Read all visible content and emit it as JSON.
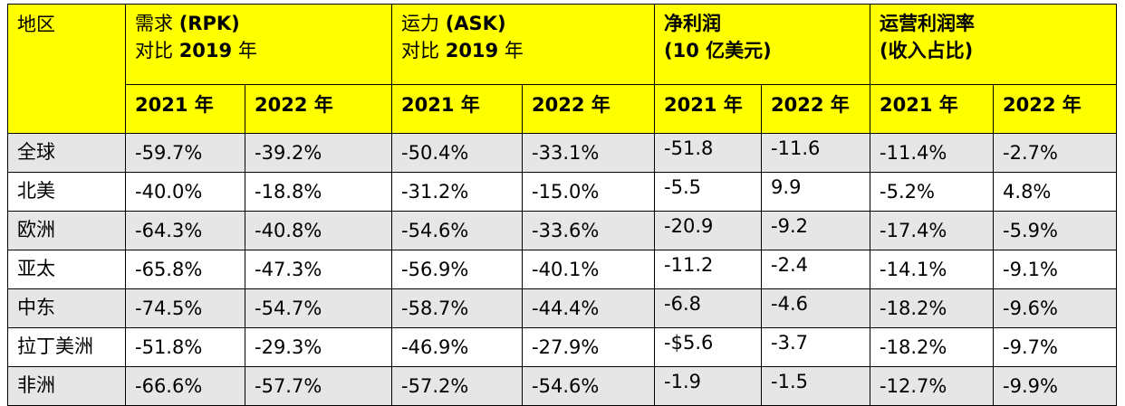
{
  "chart_data": {
    "type": "table",
    "region_header": "地区",
    "groups": [
      {
        "line1_label": "需求 ",
        "line1_bold": "(RPK)",
        "line2_label": "对比 ",
        "line2_bold": "2019",
        "line2_tail": " 年"
      },
      {
        "line1_label": "运力 ",
        "line1_bold": "(ASK)",
        "line2_label": "对比 ",
        "line2_bold": "2019",
        "line2_tail": " 年"
      },
      {
        "line1_label": "净利润",
        "line1_bold": "",
        "line2_label": "",
        "line2_bold": "(10 ",
        "line2_tail": "亿美元)"
      },
      {
        "line1_label": "运营利润率",
        "line1_bold": "",
        "line2_label": "(收入占比)",
        "line2_bold": "",
        "line2_tail": ""
      }
    ],
    "years": [
      "2021 年",
      "2022 年"
    ],
    "rows": [
      {
        "region": "全球",
        "values": [
          "-59.7%",
          "-39.2%",
          "-50.4%",
          "-33.1%",
          "-51.8",
          "-11.6",
          "-11.4%",
          "-2.7%"
        ]
      },
      {
        "region": "北美",
        "values": [
          "-40.0%",
          "-18.8%",
          "-31.2%",
          "-15.0%",
          "-5.5",
          "9.9",
          "-5.2%",
          "4.8%"
        ]
      },
      {
        "region": "欧洲",
        "values": [
          "-64.3%",
          "-40.8%",
          "-54.6%",
          "-33.6%",
          "-20.9",
          "-9.2",
          "-17.4%",
          "-5.9%"
        ]
      },
      {
        "region": "亚太",
        "values": [
          "-65.8%",
          "-47.3%",
          "-56.9%",
          "-40.1%",
          "-11.2",
          "-2.4",
          "-14.1%",
          "-9.1%"
        ]
      },
      {
        "region": "中东",
        "values": [
          "-74.5%",
          "-54.7%",
          "-58.7%",
          "-44.4%",
          "-6.8",
          "-4.6",
          "-18.2%",
          "-9.6%"
        ]
      },
      {
        "region": "拉丁美洲",
        "values": [
          "-51.8%",
          "-29.3%",
          "-46.9%",
          "-27.9%",
          "-$5.6",
          "-3.7",
          "-18.2%",
          "-9.7%"
        ]
      },
      {
        "region": "非洲",
        "values": [
          "-66.6%",
          "-57.7%",
          "-57.2%",
          "-54.6%",
          "-1.9",
          "-1.5",
          "-12.7%",
          "-9.9%"
        ]
      }
    ]
  },
  "colors": {
    "header_background": "#ffff00",
    "shaded_row": "#e6e6e6",
    "border": "#000000"
  }
}
